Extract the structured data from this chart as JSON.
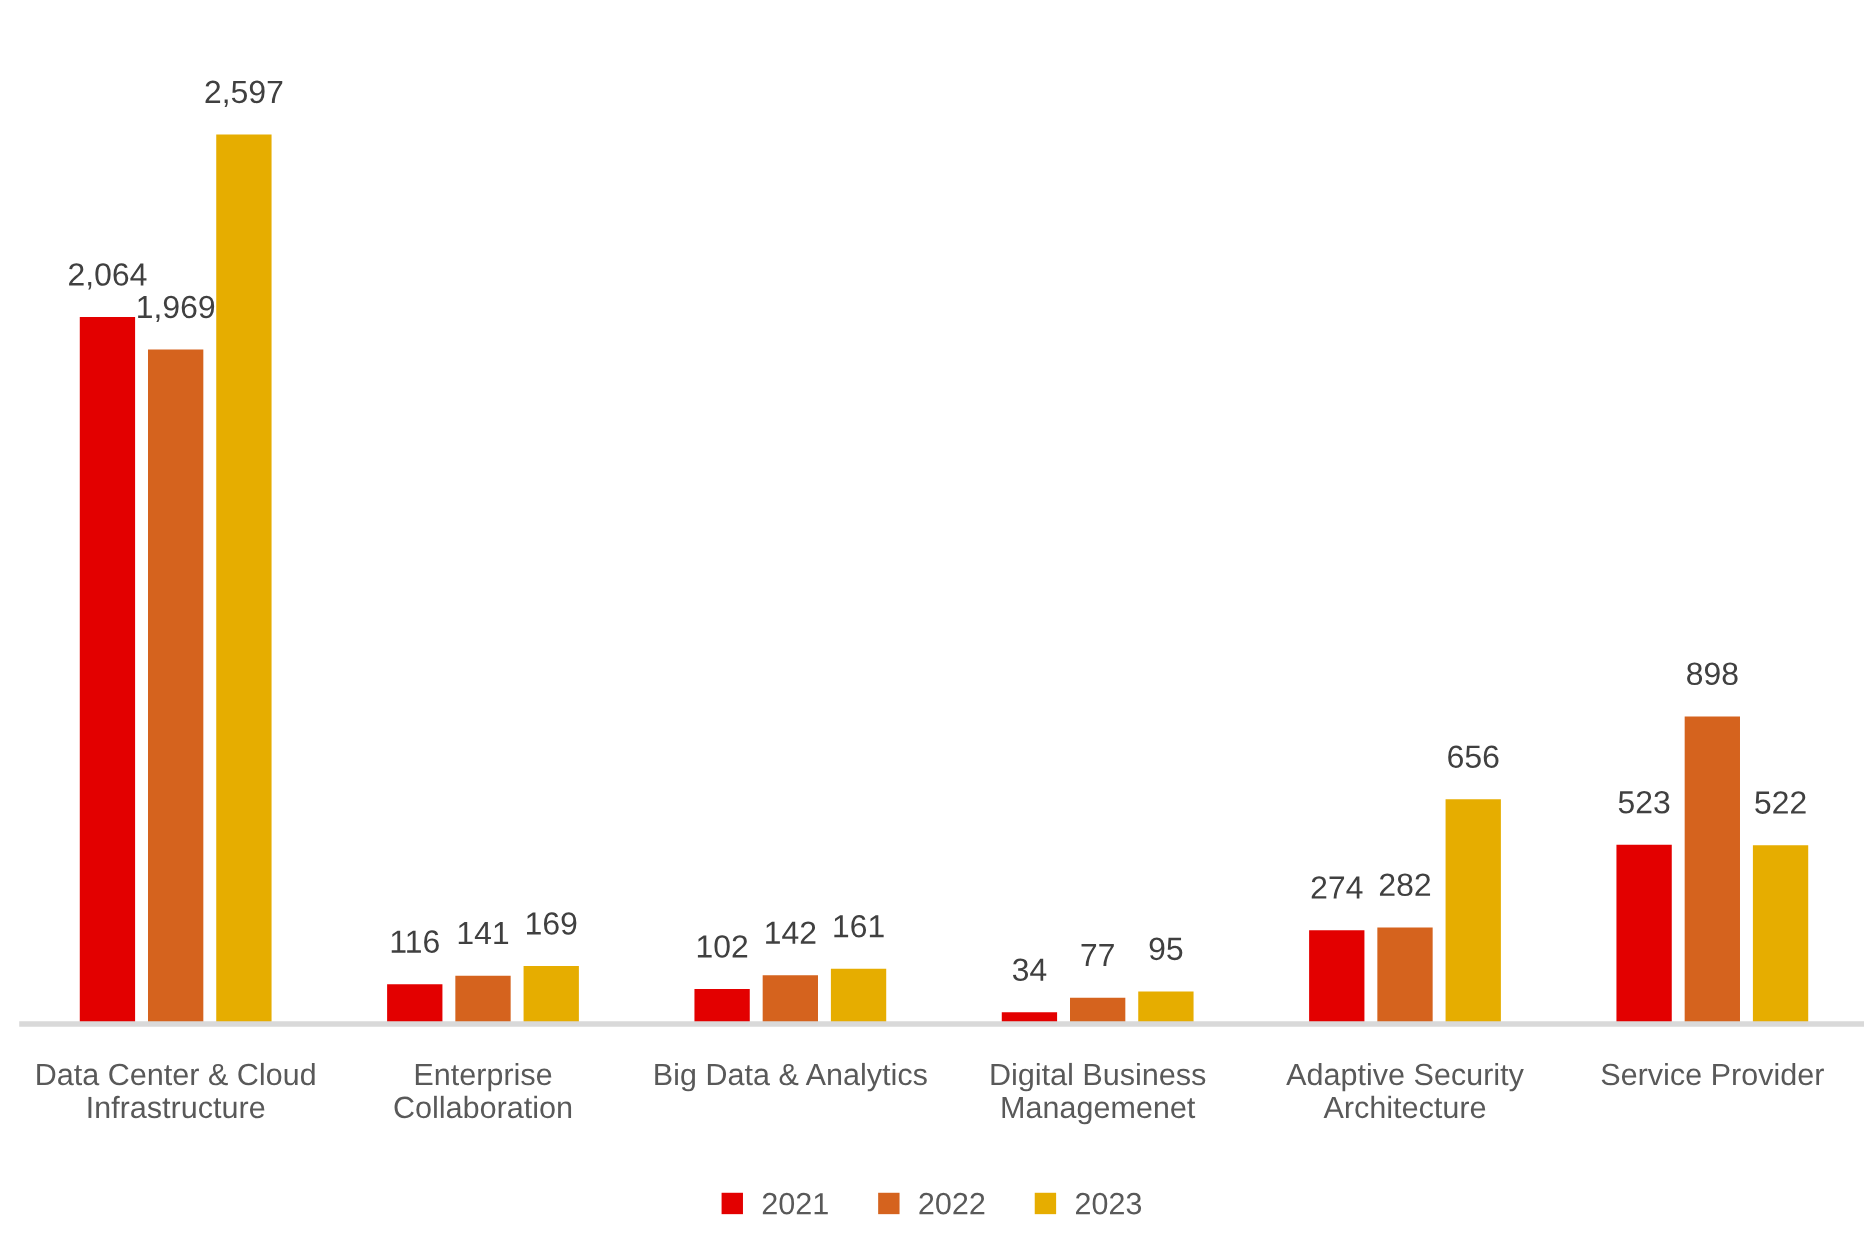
{
  "chart_data": {
    "type": "bar",
    "categories": [
      "Data Center & Cloud\nInfrastructure",
      "Enterprise\nCollaboration",
      "Big Data & Analytics",
      "Digital Business\nManagemenet",
      "Adaptive Security\nArchitecture",
      "Service Provider"
    ],
    "series": [
      {
        "name": "2021",
        "color": "#e30000",
        "values": [
          2064,
          116,
          102,
          34,
          274,
          523
        ],
        "value_labels": [
          "2,064",
          "116",
          "102",
          "34",
          "274",
          "523"
        ]
      },
      {
        "name": "2022",
        "color": "#d5631e",
        "values": [
          1969,
          141,
          142,
          77,
          282,
          898
        ],
        "value_labels": [
          "1,969",
          "141",
          "142",
          "77",
          "282",
          "898"
        ]
      },
      {
        "name": "2023",
        "color": "#e6ad00",
        "values": [
          2597,
          169,
          161,
          95,
          656,
          522
        ],
        "value_labels": [
          "2,597",
          "169",
          "161",
          "95",
          "656",
          "522"
        ]
      }
    ],
    "legend": "bottom",
    "grid": false
  }
}
